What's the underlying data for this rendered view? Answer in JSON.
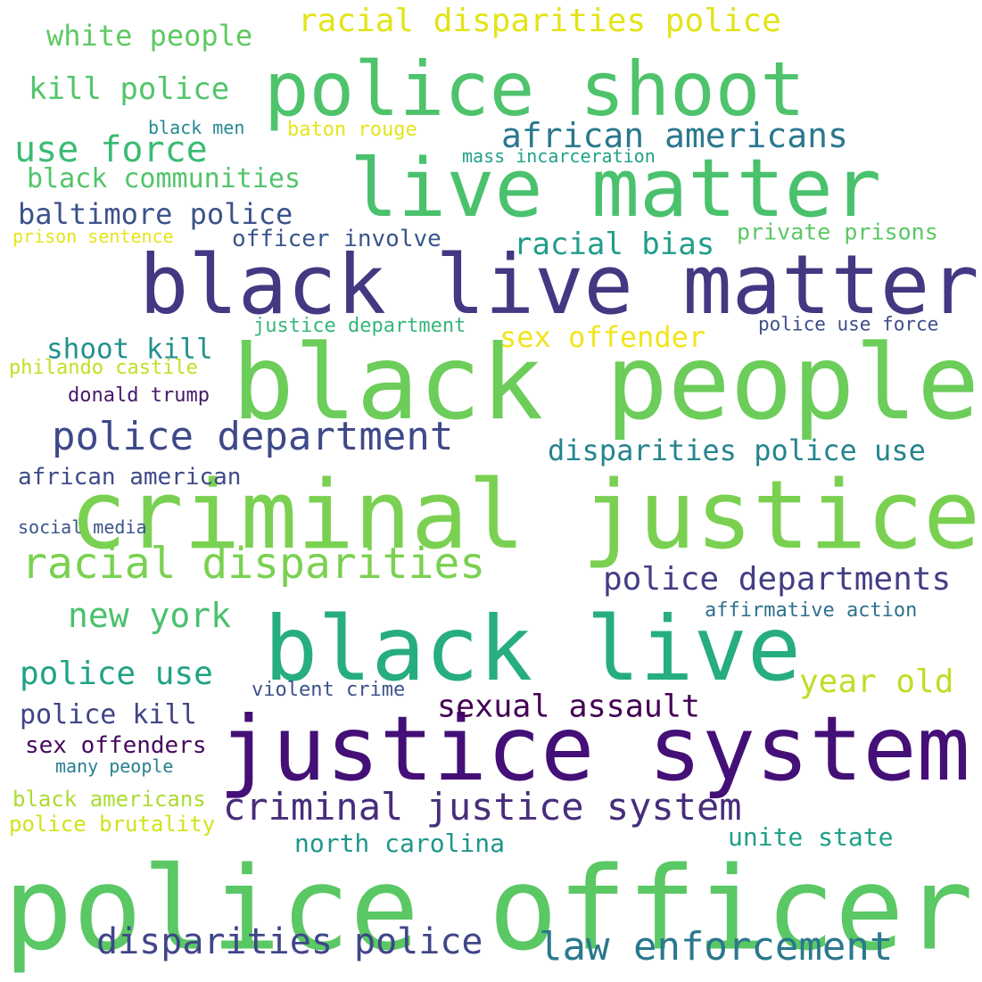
{
  "cloud": {
    "words": [
      {
        "text": "police officer",
        "color": "#5ac864"
      },
      {
        "text": "black live matter",
        "color": "#453781"
      },
      {
        "text": "black people",
        "color": "#6ccd5a"
      },
      {
        "text": "criminal justice",
        "color": "#7ad151"
      },
      {
        "text": "justice system",
        "color": "#440f76"
      },
      {
        "text": "black live",
        "color": "#26ad81"
      },
      {
        "text": "live matter",
        "color": "#4ac16d"
      },
      {
        "text": "police shoot",
        "color": "#4ec36b"
      },
      {
        "text": "racial disparities",
        "color": "#7ad151"
      },
      {
        "text": "law enforcement",
        "color": "#2a788e"
      },
      {
        "text": "police department",
        "color": "#3e4989"
      },
      {
        "text": "criminal justice system",
        "color": "#472d7b"
      },
      {
        "text": "disparities police",
        "color": "#404688"
      },
      {
        "text": "african americans",
        "color": "#2a788e"
      },
      {
        "text": "racial disparities police",
        "color": "#e2e418"
      },
      {
        "text": "police departments",
        "color": "#433e85"
      },
      {
        "text": "use force",
        "color": "#3bbb75"
      },
      {
        "text": "sexual assault",
        "color": "#440154"
      },
      {
        "text": "new york",
        "color": "#4ac16d"
      },
      {
        "text": "kill police",
        "color": "#52c569"
      },
      {
        "text": "white people",
        "color": "#5ec962"
      },
      {
        "text": "police use",
        "color": "#20a386"
      },
      {
        "text": "year old",
        "color": "#bddf26"
      },
      {
        "text": "baltimore police",
        "color": "#3b528b"
      },
      {
        "text": "disparities police use",
        "color": "#25848e"
      },
      {
        "text": "racial bias",
        "color": "#1f9e89"
      },
      {
        "text": "sex offender",
        "color": "#f1e51d"
      },
      {
        "text": "black communities",
        "color": "#52c569"
      },
      {
        "text": "police kill",
        "color": "#414487"
      },
      {
        "text": "shoot kill",
        "color": "#21918c"
      },
      {
        "text": "north carolina",
        "color": "#1f968b"
      },
      {
        "text": "unite state",
        "color": "#1fa088"
      },
      {
        "text": "african american",
        "color": "#3e4a89"
      },
      {
        "text": "officer involve",
        "color": "#39568c"
      },
      {
        "text": "sex offenders",
        "color": "#46085c"
      },
      {
        "text": "private prisons",
        "color": "#5ac864"
      },
      {
        "text": "black americans",
        "color": "#aadc32"
      },
      {
        "text": "police brutality",
        "color": "#d2e21b"
      },
      {
        "text": "affirmative action",
        "color": "#2d708e"
      },
      {
        "text": "violent crime",
        "color": "#3b528b"
      },
      {
        "text": "justice department",
        "color": "#35b779"
      },
      {
        "text": "police use force",
        "color": "#3d4d8a"
      },
      {
        "text": "donald trump",
        "color": "#48186a"
      },
      {
        "text": "philando castile",
        "color": "#c0df25"
      },
      {
        "text": "mass incarceration",
        "color": "#1fa187"
      },
      {
        "text": "prison sentence",
        "color": "#e5e419"
      },
      {
        "text": "baton rouge",
        "color": "#e5e419"
      },
      {
        "text": "social media",
        "color": "#3a538b"
      },
      {
        "text": "black men",
        "color": "#23898e"
      },
      {
        "text": "many people",
        "color": "#277f8e"
      }
    ]
  }
}
